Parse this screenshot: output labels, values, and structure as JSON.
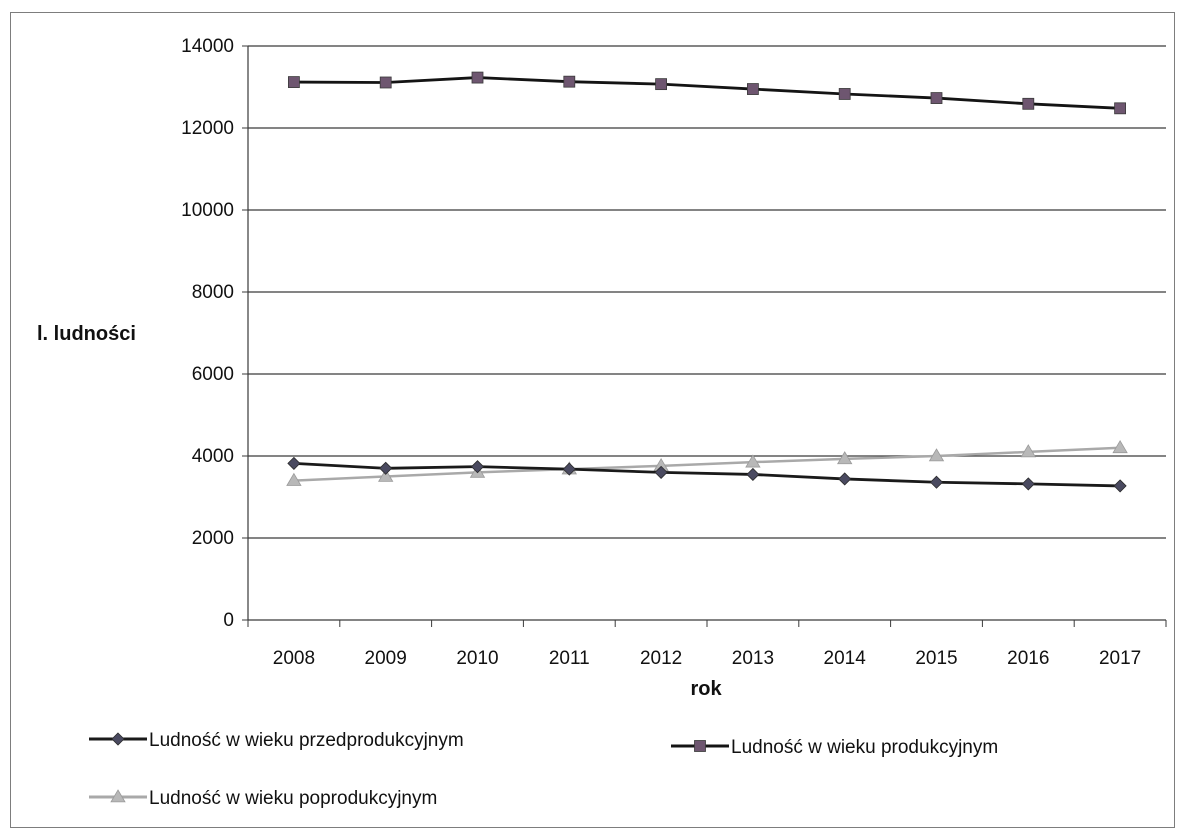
{
  "chart_data": {
    "type": "line",
    "title": "",
    "xlabel": "rok",
    "ylabel": "l. ludności",
    "x": [
      "2008",
      "2009",
      "2010",
      "2011",
      "2012",
      "2013",
      "2014",
      "2015",
      "2016",
      "2017"
    ],
    "ylim": [
      0,
      14000
    ],
    "yticks": [
      "0",
      "2000",
      "4000",
      "6000",
      "8000",
      "10000",
      "12000",
      "14000"
    ],
    "grid": true,
    "legend_position": "bottom",
    "series": [
      {
        "name": "Ludność w wieku przedprodukcyjnym",
        "marker": "diamond",
        "line_color": "#1a1a1a",
        "marker_color": "#4a4a60",
        "values": [
          3820,
          3700,
          3740,
          3680,
          3600,
          3550,
          3440,
          3360,
          3320,
          3270
        ]
      },
      {
        "name": "Ludność w wieku produkcyjnym",
        "marker": "square",
        "line_color": "#141414",
        "marker_color": "#6e5670",
        "values": [
          13120,
          13110,
          13230,
          13130,
          13070,
          12950,
          12830,
          12730,
          12590,
          12480
        ]
      },
      {
        "name": "Ludność w wieku poprodukcyjnym",
        "marker": "triangle",
        "line_color": "#a9a9a9",
        "marker_color": "#b8b8b8",
        "values": [
          3400,
          3500,
          3600,
          3680,
          3760,
          3850,
          3930,
          4000,
          4100,
          4200
        ]
      }
    ]
  }
}
